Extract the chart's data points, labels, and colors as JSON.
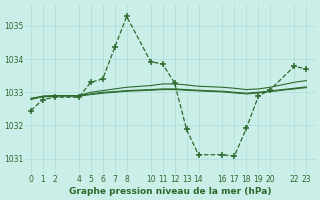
{
  "background_color": "#cceee8",
  "grid_color": "#aaddda",
  "line_color": "#2d6a2d",
  "title": "Graphe pression niveau de la mer (hPa)",
  "xlim": [
    -0.5,
    23.8
  ],
  "ylim": [
    1030.55,
    1035.65
  ],
  "yticks": [
    1031,
    1032,
    1033,
    1034,
    1035
  ],
  "xticks": [
    0,
    1,
    2,
    4,
    5,
    6,
    7,
    8,
    10,
    11,
    12,
    13,
    14,
    16,
    17,
    18,
    19,
    20,
    22,
    23
  ],
  "series_dashed_x": [
    0,
    1,
    2,
    4,
    5,
    6,
    7,
    8,
    10,
    11,
    12,
    13,
    14,
    16,
    17,
    18,
    19,
    20,
    22,
    23
  ],
  "series_dashed_y": [
    1032.45,
    1032.78,
    1032.85,
    1032.85,
    1033.3,
    1033.4,
    1034.35,
    1035.28,
    1033.92,
    1033.85,
    1033.28,
    1031.88,
    1031.12,
    1031.12,
    1031.08,
    1031.92,
    1032.88,
    1033.08,
    1033.78,
    1033.7
  ],
  "series_smooth1_x": [
    0,
    1,
    2,
    4,
    5,
    6,
    7,
    8,
    10,
    11,
    12,
    13,
    14,
    16,
    17,
    18,
    19,
    20,
    22,
    23
  ],
  "series_smooth1_y": [
    1032.78,
    1032.88,
    1032.9,
    1032.9,
    1033.0,
    1033.05,
    1033.1,
    1033.15,
    1033.2,
    1033.25,
    1033.25,
    1033.22,
    1033.18,
    1033.15,
    1033.12,
    1033.08,
    1033.1,
    1033.15,
    1033.3,
    1033.35
  ],
  "series_smooth2_x": [
    0,
    1,
    2,
    4,
    5,
    6,
    7,
    8,
    10,
    11,
    12,
    13,
    14,
    16,
    17,
    18,
    19,
    20,
    22,
    23
  ],
  "series_smooth2_y": [
    1032.82,
    1032.88,
    1032.9,
    1032.9,
    1032.95,
    1033.0,
    1033.02,
    1033.05,
    1033.08,
    1033.1,
    1033.1,
    1033.08,
    1033.06,
    1033.03,
    1033.0,
    1032.97,
    1033.0,
    1033.04,
    1033.12,
    1033.16
  ],
  "series_smooth3_x": [
    0,
    1,
    2,
    4,
    5,
    6,
    7,
    8,
    10,
    11,
    12,
    13,
    14,
    16,
    17,
    18,
    19,
    20,
    22,
    23
  ],
  "series_smooth3_y": [
    1032.8,
    1032.86,
    1032.88,
    1032.88,
    1032.93,
    1032.97,
    1033.0,
    1033.03,
    1033.06,
    1033.08,
    1033.08,
    1033.06,
    1033.04,
    1033.01,
    1032.98,
    1032.95,
    1032.98,
    1033.02,
    1033.1,
    1033.14
  ]
}
